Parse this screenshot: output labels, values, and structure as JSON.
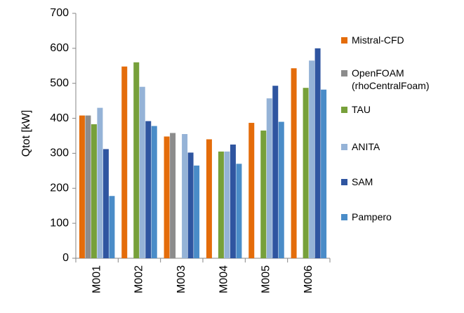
{
  "chart_data": {
    "type": "bar",
    "y_label": "Qtot [kW]",
    "categories": [
      "M001",
      "M002",
      "M003",
      "M004",
      "M005",
      "M006"
    ],
    "series": [
      {
        "name": "Mistral-CFD",
        "color": "#e46c0a",
        "values": [
          408,
          548,
          348,
          340,
          387,
          543
        ]
      },
      {
        "name": "OpenFOAM (rhoCentralFoam)",
        "color": "#8c8c8c",
        "values": [
          408,
          null,
          358,
          null,
          null,
          null
        ]
      },
      {
        "name": "TAU",
        "color": "#77a03a",
        "values": [
          383,
          560,
          null,
          305,
          365,
          487
        ]
      },
      {
        "name": "ANITA",
        "color": "#95b3d7",
        "values": [
          430,
          490,
          355,
          305,
          457,
          565
        ]
      },
      {
        "name": "SAM",
        "color": "#2f55a0",
        "values": [
          312,
          392,
          302,
          325,
          493,
          600
        ]
      },
      {
        "name": "Pampero",
        "color": "#4a8cc8",
        "values": [
          178,
          378,
          265,
          270,
          390,
          482
        ]
      }
    ],
    "ylim": [
      0,
      700
    ],
    "yticks": [
      0,
      100,
      200,
      300,
      400,
      500,
      600,
      700
    ],
    "grid": false
  }
}
